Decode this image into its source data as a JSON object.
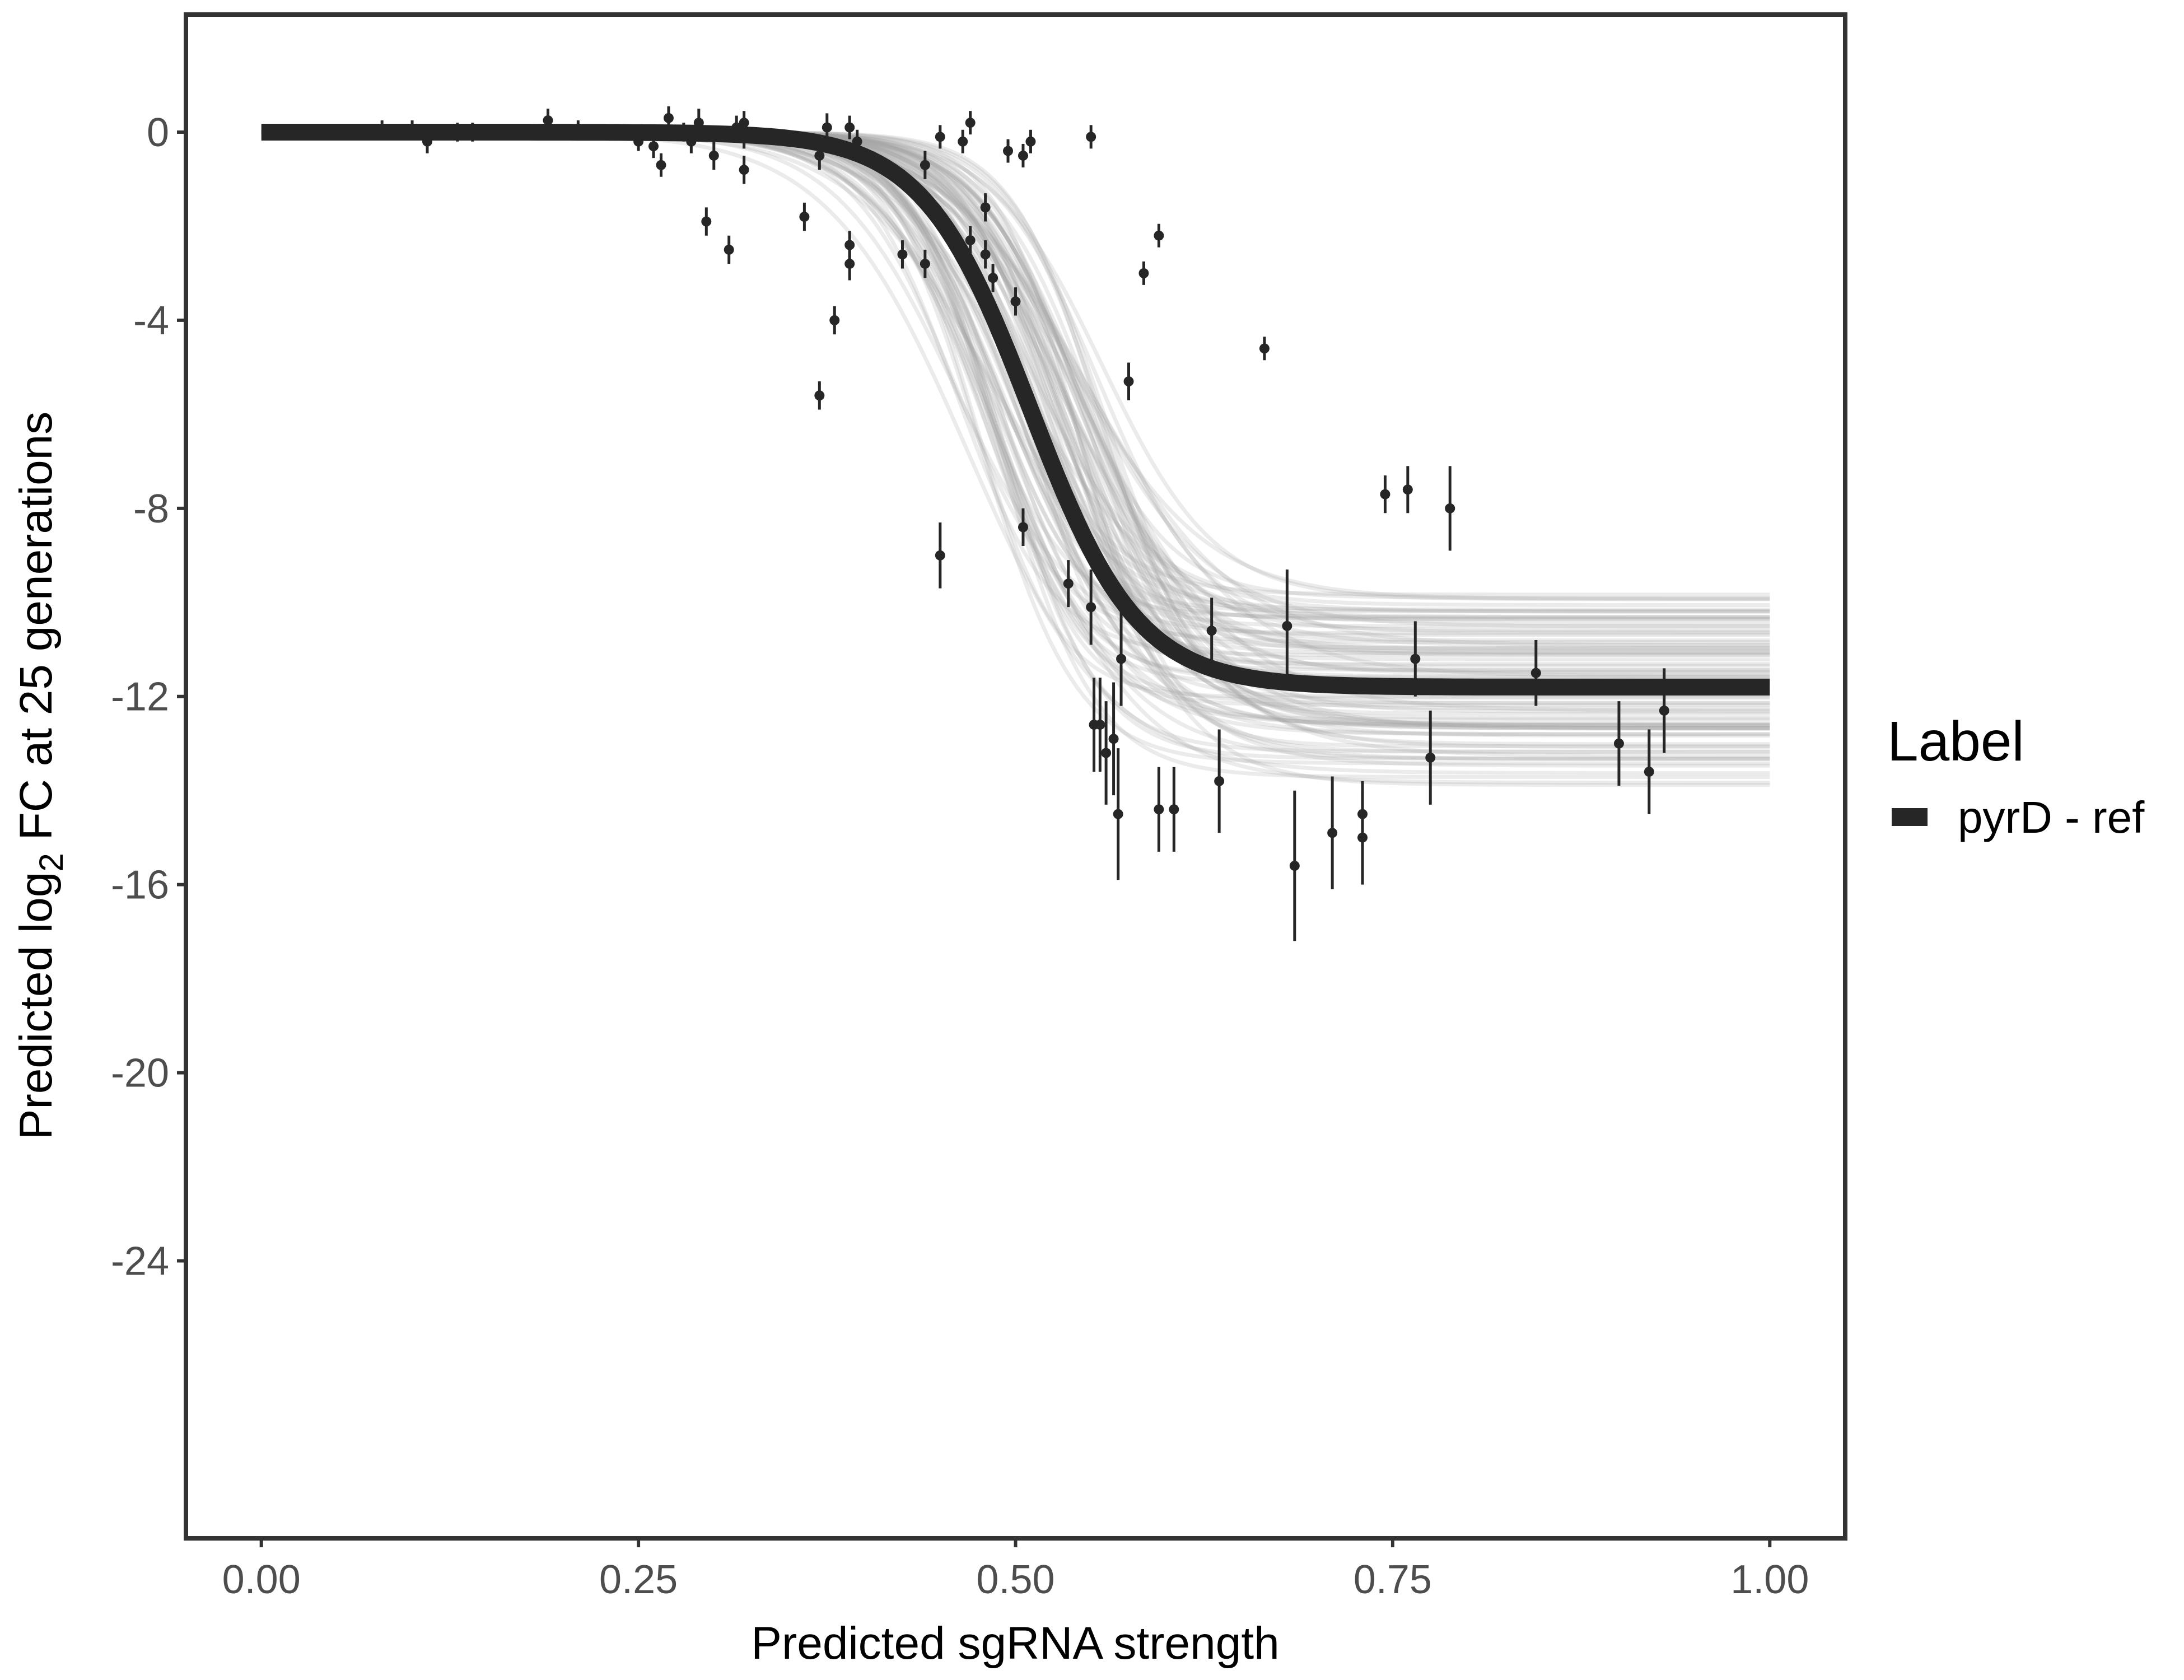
{
  "chart_data": {
    "type": "scatter",
    "title": "",
    "xlabel": "Predicted sgRNA strength",
    "ylabel": {
      "prefix": "Predicted  log",
      "subscript": "2",
      "suffix": " FC at 25 generations"
    },
    "xlim": [
      -0.05,
      1.05
    ],
    "ylim": [
      -29.9,
      2.5
    ],
    "x_ticks": [
      0.0,
      0.25,
      0.5,
      0.75,
      1.0
    ],
    "x_tick_labels": [
      "0.00",
      "0.25",
      "0.50",
      "0.75",
      "1.00"
    ],
    "y_ticks": [
      0,
      -4,
      -8,
      -12,
      -16,
      -20,
      -24
    ],
    "y_tick_labels": [
      "0",
      "-4",
      "-8",
      "-12",
      "-16",
      "-20",
      "-24"
    ],
    "grid": false,
    "legend": {
      "title": "Label",
      "position": "right",
      "entries": [
        {
          "label": "pyrD - ref",
          "color": "#262626"
        }
      ]
    },
    "fit_curve": {
      "name": "pyrD - ref",
      "model": "logistic",
      "top": 0.0,
      "bottom": -11.8,
      "midpoint": 0.51,
      "slope": 28,
      "x_range": [
        0.0,
        1.0
      ],
      "color": "#262626"
    },
    "posterior_band": {
      "draws": 90,
      "midpoint_range": [
        0.46,
        0.56
      ],
      "bottom_range": [
        -9.8,
        -13.9
      ],
      "slope_range": [
        20,
        36
      ],
      "color": "#a6a6a6"
    },
    "points": [
      {
        "x": 0.005,
        "y": 0.0,
        "err": 0.15
      },
      {
        "x": 0.015,
        "y": 0.0,
        "err": 0.15
      },
      {
        "x": 0.06,
        "y": 0.0,
        "err": 0.15
      },
      {
        "x": 0.08,
        "y": 0.05,
        "err": 0.2
      },
      {
        "x": 0.1,
        "y": 0.05,
        "err": 0.2
      },
      {
        "x": 0.11,
        "y": -0.2,
        "err": 0.25
      },
      {
        "x": 0.13,
        "y": 0.0,
        "err": 0.2
      },
      {
        "x": 0.14,
        "y": 0.0,
        "err": 0.2
      },
      {
        "x": 0.19,
        "y": 0.25,
        "err": 0.25
      },
      {
        "x": 0.21,
        "y": 0.05,
        "err": 0.2
      },
      {
        "x": 0.25,
        "y": -0.2,
        "err": 0.2
      },
      {
        "x": 0.26,
        "y": -0.3,
        "err": 0.25
      },
      {
        "x": 0.265,
        "y": -0.7,
        "err": 0.25
      },
      {
        "x": 0.27,
        "y": 0.3,
        "err": 0.25
      },
      {
        "x": 0.28,
        "y": 0.0,
        "err": 0.2
      },
      {
        "x": 0.285,
        "y": -0.2,
        "err": 0.25
      },
      {
        "x": 0.29,
        "y": 0.2,
        "err": 0.3
      },
      {
        "x": 0.295,
        "y": -1.9,
        "err": 0.3
      },
      {
        "x": 0.3,
        "y": -0.5,
        "err": 0.3
      },
      {
        "x": 0.31,
        "y": -2.5,
        "err": 0.3
      },
      {
        "x": 0.315,
        "y": 0.1,
        "err": 0.25
      },
      {
        "x": 0.32,
        "y": -0.1,
        "err": 0.25
      },
      {
        "x": 0.32,
        "y": -0.8,
        "err": 0.3
      },
      {
        "x": 0.32,
        "y": 0.2,
        "err": 0.25
      },
      {
        "x": 0.36,
        "y": -1.8,
        "err": 0.3
      },
      {
        "x": 0.37,
        "y": -0.5,
        "err": 0.3
      },
      {
        "x": 0.37,
        "y": -5.6,
        "err": 0.3
      },
      {
        "x": 0.375,
        "y": 0.1,
        "err": 0.3
      },
      {
        "x": 0.38,
        "y": -4.0,
        "err": 0.3
      },
      {
        "x": 0.39,
        "y": -2.4,
        "err": 0.3
      },
      {
        "x": 0.39,
        "y": -2.8,
        "err": 0.35
      },
      {
        "x": 0.39,
        "y": 0.1,
        "err": 0.25
      },
      {
        "x": 0.395,
        "y": -0.2,
        "err": 0.25
      },
      {
        "x": 0.425,
        "y": -2.6,
        "err": 0.3
      },
      {
        "x": 0.44,
        "y": -0.7,
        "err": 0.3
      },
      {
        "x": 0.44,
        "y": -2.8,
        "err": 0.3
      },
      {
        "x": 0.45,
        "y": -0.1,
        "err": 0.25
      },
      {
        "x": 0.45,
        "y": -9.0,
        "err": 0.7
      },
      {
        "x": 0.465,
        "y": -0.2,
        "err": 0.25
      },
      {
        "x": 0.47,
        "y": 0.2,
        "err": 0.25
      },
      {
        "x": 0.47,
        "y": -2.3,
        "err": 0.3
      },
      {
        "x": 0.48,
        "y": -1.6,
        "err": 0.3
      },
      {
        "x": 0.48,
        "y": -2.6,
        "err": 0.3
      },
      {
        "x": 0.485,
        "y": -3.1,
        "err": 0.3
      },
      {
        "x": 0.495,
        "y": -0.4,
        "err": 0.25
      },
      {
        "x": 0.5,
        "y": -3.6,
        "err": 0.3
      },
      {
        "x": 0.505,
        "y": -8.4,
        "err": 0.4
      },
      {
        "x": 0.505,
        "y": -0.5,
        "err": 0.25
      },
      {
        "x": 0.51,
        "y": -0.2,
        "err": 0.25
      },
      {
        "x": 0.535,
        "y": -9.6,
        "err": 0.5
      },
      {
        "x": 0.55,
        "y": -10.1,
        "err": 0.8
      },
      {
        "x": 0.55,
        "y": -0.1,
        "err": 0.25
      },
      {
        "x": 0.552,
        "y": -12.6,
        "err": 1.0
      },
      {
        "x": 0.556,
        "y": -12.6,
        "err": 1.0
      },
      {
        "x": 0.56,
        "y": -13.2,
        "err": 1.1
      },
      {
        "x": 0.565,
        "y": -12.9,
        "err": 1.2
      },
      {
        "x": 0.568,
        "y": -14.5,
        "err": 1.4
      },
      {
        "x": 0.57,
        "y": -11.2,
        "err": 1.0
      },
      {
        "x": 0.575,
        "y": -5.3,
        "err": 0.4
      },
      {
        "x": 0.585,
        "y": -3.0,
        "err": 0.25
      },
      {
        "x": 0.595,
        "y": -2.2,
        "err": 0.25
      },
      {
        "x": 0.595,
        "y": -14.4,
        "err": 0.9
      },
      {
        "x": 0.605,
        "y": -14.4,
        "err": 0.9
      },
      {
        "x": 0.63,
        "y": -10.6,
        "err": 0.7
      },
      {
        "x": 0.635,
        "y": -13.8,
        "err": 1.1
      },
      {
        "x": 0.665,
        "y": -4.6,
        "err": 0.25
      },
      {
        "x": 0.68,
        "y": -10.5,
        "err": 1.2
      },
      {
        "x": 0.685,
        "y": -15.6,
        "err": 1.6
      },
      {
        "x": 0.71,
        "y": -14.9,
        "err": 1.2
      },
      {
        "x": 0.73,
        "y": -15.0,
        "err": 1.0
      },
      {
        "x": 0.73,
        "y": -14.5,
        "err": 0.7
      },
      {
        "x": 0.745,
        "y": -7.7,
        "err": 0.4
      },
      {
        "x": 0.76,
        "y": -7.6,
        "err": 0.5
      },
      {
        "x": 0.765,
        "y": -11.2,
        "err": 0.8
      },
      {
        "x": 0.775,
        "y": -13.3,
        "err": 1.0
      },
      {
        "x": 0.788,
        "y": -8.0,
        "err": 0.9
      },
      {
        "x": 0.845,
        "y": -11.5,
        "err": 0.7
      },
      {
        "x": 0.9,
        "y": -13.0,
        "err": 0.9
      },
      {
        "x": 0.92,
        "y": -13.6,
        "err": 0.9
      },
      {
        "x": 0.93,
        "y": -12.3,
        "err": 0.9
      }
    ]
  }
}
